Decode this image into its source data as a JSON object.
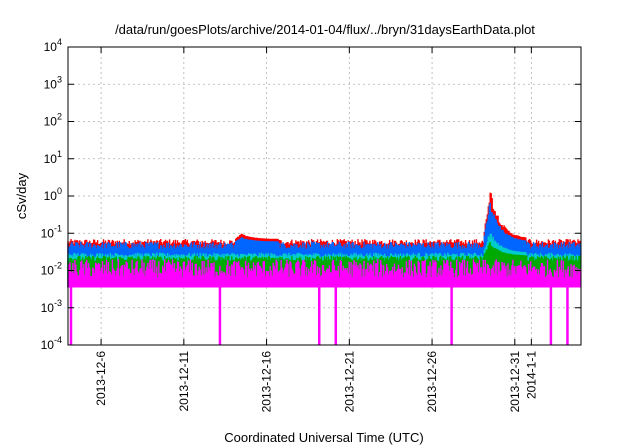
{
  "chart_data": {
    "type": "area",
    "title": "/data/run/goesPlots/archive/2014-01-04/flux/../bryn/31daysEarthData.plot",
    "xlabel": "Coordinated Universal Time (UTC)",
    "ylabel": "cSv/day",
    "yscale": "log",
    "ylim": [
      0.0001,
      10000
    ],
    "xlim": [
      "2013-12-04",
      "2014-01-04"
    ],
    "grid": true,
    "x_ticks": [
      "2013-12-6",
      "2013-12-11",
      "2013-12-16",
      "2013-12-21",
      "2013-12-26",
      "2013-12-31",
      "2014-1-1"
    ],
    "x_tick_dates": [
      "2013-12-06",
      "2013-12-11",
      "2013-12-16",
      "2013-12-21",
      "2013-12-26",
      "2013-12-31",
      "2014-01-01"
    ],
    "y_ticks": [
      {
        "base": "10",
        "exp": "-4",
        "value": 0.0001
      },
      {
        "base": "10",
        "exp": "-3",
        "value": 0.001
      },
      {
        "base": "10",
        "exp": "-2",
        "value": 0.01
      },
      {
        "base": "10",
        "exp": "-1",
        "value": 0.1
      },
      {
        "base": "10",
        "exp": "0",
        "value": 1
      },
      {
        "base": "10",
        "exp": "1",
        "value": 10
      },
      {
        "base": "10",
        "exp": "2",
        "value": 100
      },
      {
        "base": "10",
        "exp": "3",
        "value": 1000
      },
      {
        "base": "10",
        "exp": "4",
        "value": 10000
      }
    ],
    "series": [
      {
        "color": "#ff0000",
        "baseline_band": [
          0.04,
          0.07
        ],
        "peaks": [
          {
            "date": "2013-12-29",
            "value": 2.0
          },
          {
            "date": "2013-12-14",
            "value": 0.1
          }
        ]
      },
      {
        "color": "#0066ff",
        "baseline_band": [
          0.03,
          0.06
        ],
        "peaks": [
          {
            "date": "2013-12-29",
            "value": 0.8
          },
          {
            "date": "2013-12-14",
            "value": 0.08
          }
        ]
      },
      {
        "color": "#00cccc",
        "baseline_band": [
          0.02,
          0.03
        ],
        "peaks": [
          {
            "date": "2013-12-29",
            "value": 0.12
          }
        ]
      },
      {
        "color": "#00aa00",
        "baseline_band": [
          0.015,
          0.025
        ],
        "peaks": [
          {
            "date": "2013-12-29",
            "value": 0.06
          }
        ]
      },
      {
        "color": "#ff00ff",
        "baseline_band": [
          0.0035,
          0.02
        ],
        "dips": [
          "2013-12-04",
          "2013-12-13",
          "2013-12-19",
          "2013-12-20",
          "2013-12-27",
          "2014-01-02",
          "2014-01-03"
        ]
      }
    ]
  }
}
